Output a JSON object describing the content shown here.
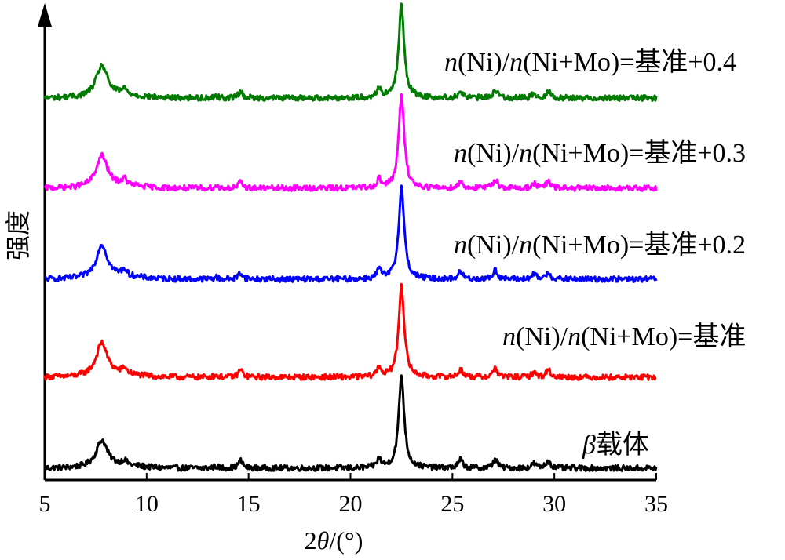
{
  "chart_data": {
    "type": "line",
    "xlabel": "2θ/(°)",
    "ylabel": "强度",
    "xlim": [
      5,
      35
    ],
    "xticks": [
      5,
      10,
      15,
      20,
      25,
      30,
      35
    ],
    "y_ticks_shown": false,
    "grid": false,
    "legend": "inline labels above each curve (right side)",
    "peaks_2theta": [
      7.8,
      8.9,
      13.4,
      14.6,
      21.4,
      22.5,
      25.4,
      27.1,
      29.0,
      29.7
    ],
    "series": [
      {
        "name": "β载体",
        "color": "#000000",
        "baseline": 0.0,
        "peaks": [
          [
            7.8,
            0.28
          ],
          [
            8.9,
            0.05
          ],
          [
            13.4,
            0.02
          ],
          [
            14.6,
            0.08
          ],
          [
            21.4,
            0.09
          ],
          [
            22.5,
            1.0
          ],
          [
            25.4,
            0.09
          ],
          [
            27.1,
            0.1
          ],
          [
            29.0,
            0.05
          ],
          [
            29.7,
            0.08
          ]
        ]
      },
      {
        "name": "n(Ni)/n(Ni+Mo)=基准",
        "color": "#ff0000",
        "baseline": 1.0,
        "peaks": [
          [
            7.8,
            0.35
          ],
          [
            8.9,
            0.06
          ],
          [
            13.4,
            0.02
          ],
          [
            14.6,
            0.08
          ],
          [
            21.4,
            0.1
          ],
          [
            22.5,
            1.0
          ],
          [
            25.4,
            0.08
          ],
          [
            27.1,
            0.1
          ],
          [
            29.0,
            0.05
          ],
          [
            29.7,
            0.08
          ]
        ]
      },
      {
        "name": "n(Ni)/n(Ni+Mo)=基准+0.2",
        "color": "#0000ff",
        "baseline": 2.0,
        "peaks": [
          [
            7.8,
            0.35
          ],
          [
            8.9,
            0.07
          ],
          [
            13.4,
            0.02
          ],
          [
            14.6,
            0.07
          ],
          [
            21.4,
            0.1
          ],
          [
            22.5,
            1.0
          ],
          [
            25.4,
            0.08
          ],
          [
            27.1,
            0.1
          ],
          [
            29.0,
            0.05
          ],
          [
            29.7,
            0.07
          ]
        ]
      },
      {
        "name": "n(Ni)/n(Ni+Mo)=基准+0.3",
        "color": "#ff00ff",
        "baseline": 3.0,
        "peaks": [
          [
            7.8,
            0.33
          ],
          [
            8.9,
            0.06
          ],
          [
            13.4,
            0.02
          ],
          [
            14.6,
            0.06
          ],
          [
            21.4,
            0.09
          ],
          [
            22.5,
            1.0
          ],
          [
            25.4,
            0.07
          ],
          [
            27.1,
            0.1
          ],
          [
            29.0,
            0.05
          ],
          [
            29.7,
            0.07
          ]
        ]
      },
      {
        "name": "n(Ni)/n(Ni+Mo)=基准+0.4",
        "color": "#007a00",
        "baseline": 4.0,
        "peaks": [
          [
            7.8,
            0.33
          ],
          [
            8.9,
            0.06
          ],
          [
            13.4,
            0.02
          ],
          [
            14.6,
            0.07
          ],
          [
            21.4,
            0.1
          ],
          [
            22.5,
            1.0
          ],
          [
            25.4,
            0.07
          ],
          [
            27.1,
            0.09
          ],
          [
            29.0,
            0.05
          ],
          [
            29.7,
            0.07
          ]
        ]
      }
    ]
  }
}
